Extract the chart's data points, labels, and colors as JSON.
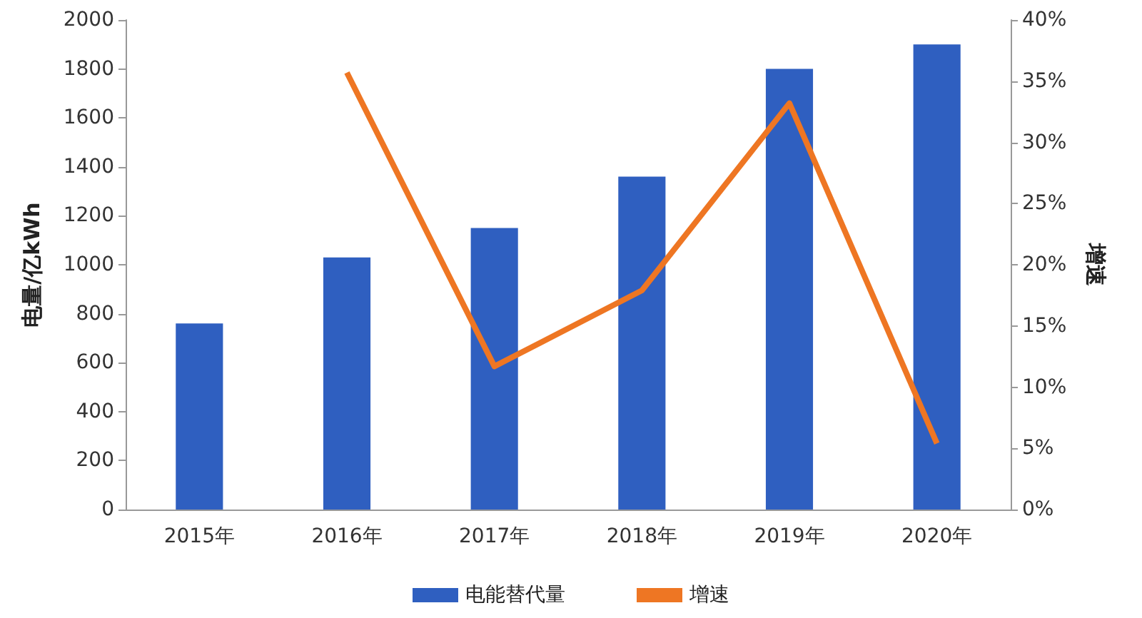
{
  "chart_data": {
    "type": "bar",
    "ylabel": "电量/亿kWh",
    "y2label": "增速",
    "categories": [
      "2015年",
      "2016年",
      "2017年",
      "2018年",
      "2019年",
      "2020年"
    ],
    "series": [
      {
        "name": "电能替代量",
        "color": "#2f5fc0",
        "values": [
          760,
          1030,
          1150,
          1360,
          1800,
          1900
        ]
      },
      {
        "name": "增速",
        "type": "line",
        "axis": "y2",
        "color": "#ee7623",
        "values": [
          null,
          35.7,
          11.7,
          17.9,
          33.2,
          5.4
        ]
      }
    ],
    "ylim": [
      0,
      2000
    ],
    "yticks": [
      0,
      200,
      400,
      600,
      800,
      1000,
      1200,
      1400,
      1600,
      1800,
      2000
    ],
    "y2lim": [
      0,
      40
    ],
    "y2ticks": [
      {
        "value": 0,
        "label": "0%"
      },
      {
        "value": 5,
        "label": "5%"
      },
      {
        "value": 10,
        "label": "10%"
      },
      {
        "value": 15,
        "label": "15%"
      },
      {
        "value": 20,
        "label": "20%"
      },
      {
        "value": 25,
        "label": "25%"
      },
      {
        "value": 30,
        "label": "30%"
      },
      {
        "value": 35,
        "label": "35%"
      },
      {
        "value": 40,
        "label": "40%"
      }
    ],
    "grid": false,
    "legend": "bottom",
    "marker": "none",
    "line_style": "solid"
  }
}
